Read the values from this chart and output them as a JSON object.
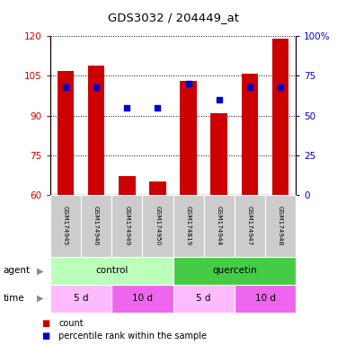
{
  "title": "GDS3032 / 204449_at",
  "samples": [
    "GSM174945",
    "GSM174946",
    "GSM174949",
    "GSM174950",
    "GSM174819",
    "GSM174944",
    "GSM174947",
    "GSM174948"
  ],
  "bar_values": [
    107,
    109,
    67,
    65,
    103,
    91,
    106,
    119
  ],
  "percentile_values": [
    68,
    68,
    55,
    55,
    70,
    60,
    68,
    68
  ],
  "bar_color": "#cc0000",
  "percentile_color": "#0000cc",
  "ylim_left": [
    60,
    120
  ],
  "ylim_right": [
    0,
    100
  ],
  "yticks_left": [
    60,
    75,
    90,
    105,
    120
  ],
  "yticks_right": [
    0,
    25,
    50,
    75,
    100
  ],
  "agent_groups": [
    {
      "label": "control",
      "color": "#bbffbb",
      "start": 0,
      "end": 4
    },
    {
      "label": "quercetin",
      "color": "#44cc44",
      "start": 4,
      "end": 8
    }
  ],
  "time_groups": [
    {
      "label": "5 d",
      "color": "#ffbbff",
      "start": 0,
      "end": 2
    },
    {
      "label": "10 d",
      "color": "#ee66ee",
      "start": 2,
      "end": 4
    },
    {
      "label": "5 d",
      "color": "#ffbbff",
      "start": 4,
      "end": 6
    },
    {
      "label": "10 d",
      "color": "#ee66ee",
      "start": 6,
      "end": 8
    }
  ],
  "agent_label": "agent",
  "time_label": "time",
  "legend_count_label": "count",
  "legend_percentile_label": "percentile rank within the sample",
  "left_tick_color": "#cc0000",
  "right_tick_color": "#0000cc",
  "plot_bg": "#ffffff"
}
